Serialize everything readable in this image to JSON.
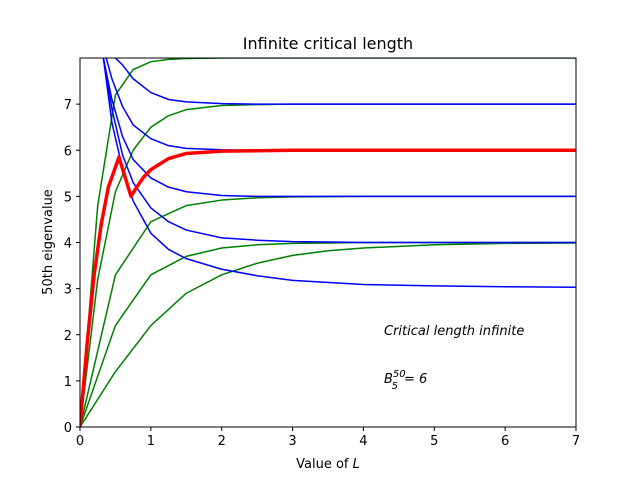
{
  "chart_data": {
    "type": "line",
    "title": "Infinite critical length",
    "xlabel_prefix": "Value of ",
    "xlabel_var": "L",
    "ylabel": "50th eigenvalue",
    "xlim": [
      0,
      7
    ],
    "ylim": [
      0,
      8
    ],
    "xticks": [
      "0",
      "1",
      "2",
      "3",
      "4",
      "5",
      "6",
      "7"
    ],
    "yticks": [
      "0",
      "1",
      "2",
      "3",
      "4",
      "5",
      "6",
      "7"
    ],
    "grid": false,
    "annotations": {
      "line1": "Critical length infinite",
      "line2_base": "B",
      "line2_sup": "50",
      "line2_sub": "5",
      "line2_rest": "= 6"
    },
    "colors": {
      "green": "#008000",
      "blue": "#0000ff",
      "red": "#ff0000"
    },
    "series": [
      {
        "color": "green",
        "x": [
          0,
          0.25,
          0.5,
          0.75,
          1.0,
          1.25,
          1.5,
          2,
          3,
          4,
          5,
          6,
          7
        ],
        "y": [
          0,
          4.8,
          7.2,
          7.75,
          7.92,
          7.97,
          7.99,
          8.0,
          8.0,
          8.0,
          8.0,
          8.0,
          8.0
        ]
      },
      {
        "color": "green",
        "x": [
          0,
          0.25,
          0.5,
          0.75,
          1.0,
          1.25,
          1.5,
          2,
          2.5,
          3,
          4,
          5,
          6,
          7
        ],
        "y": [
          0,
          3.2,
          5.1,
          6.0,
          6.5,
          6.75,
          6.88,
          6.97,
          6.99,
          7.0,
          7.0,
          7.0,
          7.0,
          7.0
        ]
      },
      {
        "color": "green",
        "x": [
          0,
          0.5,
          1.0,
          1.5,
          2.0,
          2.5,
          3,
          4,
          5,
          6,
          7
        ],
        "y": [
          0,
          3.3,
          4.45,
          4.8,
          4.92,
          4.97,
          4.99,
          5.0,
          5.0,
          5.0,
          5.0
        ]
      },
      {
        "color": "green",
        "x": [
          0,
          0.5,
          1.0,
          1.5,
          2.0,
          2.5,
          3,
          3.5,
          4,
          5,
          6,
          7
        ],
        "y": [
          0,
          2.2,
          3.3,
          3.7,
          3.88,
          3.95,
          3.98,
          3.99,
          4.0,
          4.0,
          4.0,
          4.0
        ]
      },
      {
        "color": "green",
        "x": [
          0,
          0.5,
          1.0,
          1.5,
          2.0,
          2.5,
          3,
          3.5,
          4,
          5,
          6,
          7
        ],
        "y": [
          0,
          1.2,
          2.2,
          2.9,
          3.3,
          3.55,
          3.72,
          3.82,
          3.88,
          3.95,
          3.98,
          3.99
        ]
      },
      {
        "color": "blue",
        "x": [
          0.5,
          0.6,
          0.75,
          1.0,
          1.25,
          1.5,
          2,
          2.5,
          3,
          4,
          5,
          6,
          7
        ],
        "y": [
          8.0,
          7.85,
          7.55,
          7.25,
          7.1,
          7.05,
          7.01,
          7.0,
          7.0,
          7.0,
          7.0,
          7.0,
          7.0
        ]
      },
      {
        "color": "blue",
        "x": [
          0.37,
          0.45,
          0.6,
          0.75,
          1.0,
          1.25,
          1.5,
          2,
          2.5,
          3,
          4,
          5,
          6,
          7
        ],
        "y": [
          8.0,
          7.55,
          6.95,
          6.55,
          6.25,
          6.1,
          6.04,
          6.01,
          6.0,
          6.0,
          6.0,
          6.0,
          6.0,
          6.0
        ]
      },
      {
        "color": "blue",
        "x": [
          0.33,
          0.45,
          0.6,
          0.75,
          1.0,
          1.25,
          1.5,
          2,
          2.5,
          3,
          4,
          5,
          6,
          7
        ],
        "y": [
          8.0,
          7.1,
          6.3,
          5.8,
          5.4,
          5.2,
          5.1,
          5.02,
          5.0,
          5.0,
          5.0,
          5.0,
          5.0,
          5.0
        ]
      },
      {
        "color": "blue",
        "x": [
          0.33,
          0.45,
          0.6,
          0.75,
          1.0,
          1.25,
          1.5,
          2,
          2.5,
          3,
          3.5,
          4,
          5,
          6,
          7
        ],
        "y": [
          8.0,
          6.9,
          5.9,
          5.3,
          4.75,
          4.45,
          4.27,
          4.1,
          4.05,
          4.02,
          4.01,
          4.0,
          4.0,
          4.0,
          4.0
        ]
      },
      {
        "color": "blue",
        "x": [
          0.33,
          0.45,
          0.6,
          0.75,
          1.0,
          1.25,
          1.5,
          2,
          2.5,
          3,
          4,
          5,
          6,
          7
        ],
        "y": [
          8.0,
          6.6,
          5.6,
          4.9,
          4.2,
          3.85,
          3.65,
          3.42,
          3.28,
          3.18,
          3.09,
          3.06,
          3.04,
          3.03
        ]
      },
      {
        "color": "red",
        "bold": true,
        "x": [
          0,
          0.1,
          0.2,
          0.3,
          0.4,
          0.55,
          0.65,
          0.72,
          0.8,
          0.9,
          1.0,
          1.25,
          1.5,
          2,
          2.5,
          3,
          4,
          5,
          6,
          7
        ],
        "y": [
          0,
          1.8,
          3.3,
          4.4,
          5.2,
          5.85,
          5.35,
          5.0,
          5.2,
          5.42,
          5.58,
          5.82,
          5.93,
          5.98,
          5.99,
          6.0,
          6.0,
          6.0,
          6.0,
          6.0
        ]
      }
    ]
  }
}
